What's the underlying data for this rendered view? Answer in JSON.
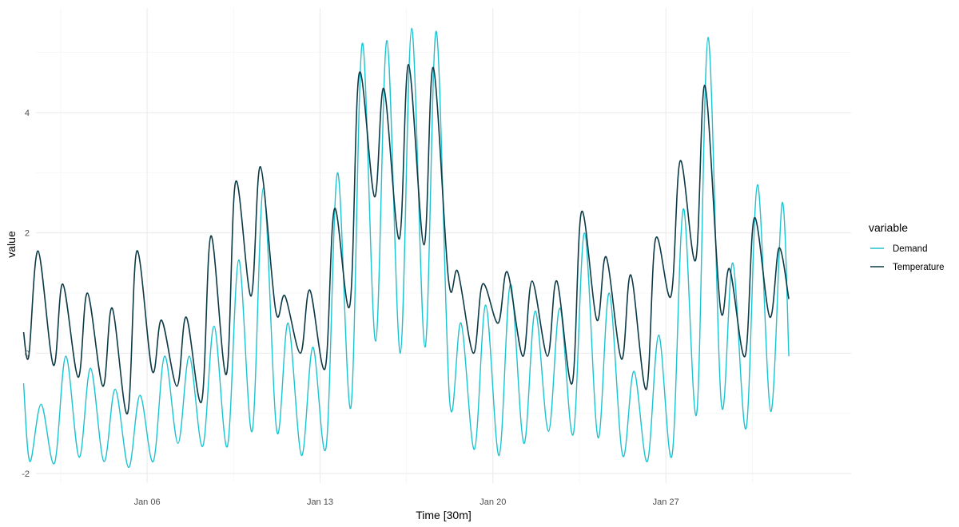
{
  "chart_data": {
    "type": "line",
    "title": "",
    "xlabel": "Time [30m]",
    "ylabel": "value",
    "ylim": [
      -2.16,
      5.74
    ],
    "xlim": [
      "Jan 01 12:00",
      "Feb 03 12:00"
    ],
    "grid": true,
    "y_ticks": [
      "-2",
      "0",
      "2",
      "4"
    ],
    "y_tick_values": [
      -2,
      0,
      2,
      4
    ],
    "x_ticks": [
      "Jan 06",
      "Jan 13",
      "Jan 20",
      "Jan 27"
    ],
    "x_tick_dates": [
      "Jan 06 00:00",
      "Jan 13 00:00",
      "Jan 20 00:00",
      "Jan 27 00:00"
    ],
    "legend": {
      "title": "variable",
      "position": "right"
    },
    "series": [
      {
        "name": "Demand",
        "color": "#1cc3d0",
        "x": [
          "Jan 01 00:00",
          "Jan 01 06:00",
          "Jan 01 17:00",
          "Jan 02 06:00",
          "Jan 02 17:00",
          "Jan 03 06:00",
          "Jan 03 17:00",
          "Jan 04 06:00",
          "Jan 04 17:00",
          "Jan 05 06:00",
          "Jan 05 17:00",
          "Jan 06 06:00",
          "Jan 06 17:00",
          "Jan 07 06:00",
          "Jan 07 17:00",
          "Jan 08 06:00",
          "Jan 08 17:00",
          "Jan 09 06:00",
          "Jan 09 17:00",
          "Jan 10 06:00",
          "Jan 10 17:00",
          "Jan 11 06:00",
          "Jan 11 17:00",
          "Jan 12 06:00",
          "Jan 12 17:00",
          "Jan 13 06:00",
          "Jan 13 17:00",
          "Jan 14 06:00",
          "Jan 14 17:00",
          "Jan 15 06:00",
          "Jan 15 17:00",
          "Jan 16 06:00",
          "Jan 16 17:00",
          "Jan 17 06:00",
          "Jan 17 17:00",
          "Jan 18 06:00",
          "Jan 18 17:00",
          "Jan 19 06:00",
          "Jan 19 17:00",
          "Jan 20 06:00",
          "Jan 20 17:00",
          "Jan 21 06:00",
          "Jan 21 17:00",
          "Jan 22 06:00",
          "Jan 22 17:00",
          "Jan 23 06:00",
          "Jan 23 17:00",
          "Jan 24 06:00",
          "Jan 24 17:00",
          "Jan 25 06:00",
          "Jan 25 17:00",
          "Jan 26 06:00",
          "Jan 26 17:00",
          "Jan 27 06:00",
          "Jan 27 17:00",
          "Jan 28 06:00",
          "Jan 28 17:00",
          "Jan 29 06:00",
          "Jan 29 17:00",
          "Jan 30 06:00",
          "Jan 30 17:00",
          "Jan 31 06:00",
          "Jan 31 17:00",
          "Jan 31 23:30"
        ],
        "values": [
          -0.5,
          -1.8,
          -0.85,
          -1.83,
          -0.05,
          -1.73,
          -0.25,
          -1.8,
          -0.6,
          -1.9,
          -0.7,
          -1.8,
          -0.05,
          -1.5,
          -0.05,
          -1.55,
          0.45,
          -1.55,
          1.55,
          -1.3,
          2.75,
          -1.3,
          0.5,
          -1.7,
          0.1,
          -1.55,
          3.0,
          -0.9,
          5.15,
          0.2,
          5.2,
          0.0,
          5.4,
          0.1,
          5.35,
          -0.8,
          0.5,
          -1.6,
          0.8,
          -1.7,
          1.15,
          -1.5,
          0.7,
          -1.3,
          0.75,
          -1.35,
          2.0,
          -1.4,
          1.0,
          -1.7,
          -0.3,
          -1.8,
          0.3,
          -1.7,
          2.4,
          -1.0,
          5.25,
          -0.85,
          1.5,
          -1.25,
          2.8,
          -0.97,
          2.5,
          -0.05
        ]
      },
      {
        "name": "Temperature",
        "color": "#0c3a46",
        "x": [
          "Jan 01 00:00",
          "Jan 01 05:00",
          "Jan 01 14:00",
          "Jan 02 05:00",
          "Jan 02 14:00",
          "Jan 03 05:00",
          "Jan 03 14:00",
          "Jan 04 05:00",
          "Jan 04 14:00",
          "Jan 05 05:00",
          "Jan 05 14:00",
          "Jan 06 05:00",
          "Jan 06 14:00",
          "Jan 07 05:00",
          "Jan 07 14:00",
          "Jan 08 05:00",
          "Jan 08 14:00",
          "Jan 09 05:00",
          "Jan 09 14:00",
          "Jan 10 05:00",
          "Jan 10 14:00",
          "Jan 11 05:00",
          "Jan 11 14:00",
          "Jan 12 05:00",
          "Jan 12 14:00",
          "Jan 13 05:00",
          "Jan 13 14:00",
          "Jan 14 05:00",
          "Jan 14 14:00",
          "Jan 15 05:00",
          "Jan 15 14:00",
          "Jan 16 05:00",
          "Jan 16 14:00",
          "Jan 17 05:00",
          "Jan 17 14:00",
          "Jan 18 05:00",
          "Jan 18 14:00",
          "Jan 19 05:00",
          "Jan 19 14:00",
          "Jan 20 05:00",
          "Jan 20 14:00",
          "Jan 21 05:00",
          "Jan 21 14:00",
          "Jan 22 05:00",
          "Jan 22 14:00",
          "Jan 23 05:00",
          "Jan 23 14:00",
          "Jan 24 05:00",
          "Jan 24 14:00",
          "Jan 25 05:00",
          "Jan 25 14:00",
          "Jan 26 05:00",
          "Jan 26 14:00",
          "Jan 27 05:00",
          "Jan 27 14:00",
          "Jan 28 05:00",
          "Jan 28 14:00",
          "Jan 29 05:00",
          "Jan 29 14:00",
          "Jan 30 05:00",
          "Jan 30 14:00",
          "Jan 31 05:00",
          "Jan 31 14:00",
          "Jan 31 23:30"
        ],
        "values": [
          0.35,
          -0.05,
          1.7,
          -0.2,
          1.15,
          -0.4,
          1.0,
          -0.55,
          0.75,
          -1.0,
          1.7,
          -0.3,
          0.55,
          -0.55,
          0.6,
          -0.8,
          1.95,
          -0.35,
          2.85,
          0.95,
          3.1,
          0.7,
          0.95,
          0.0,
          1.05,
          -0.25,
          2.4,
          0.8,
          4.65,
          2.6,
          4.4,
          1.9,
          4.8,
          1.8,
          4.75,
          1.2,
          1.35,
          0.0,
          1.15,
          0.5,
          1.35,
          -0.05,
          1.2,
          -0.05,
          1.2,
          -0.5,
          2.35,
          0.55,
          1.6,
          -0.1,
          1.3,
          -0.6,
          1.9,
          0.95,
          3.2,
          1.55,
          4.45,
          0.75,
          1.4,
          -0.05,
          2.25,
          0.6,
          1.75,
          0.9
        ]
      }
    ]
  }
}
